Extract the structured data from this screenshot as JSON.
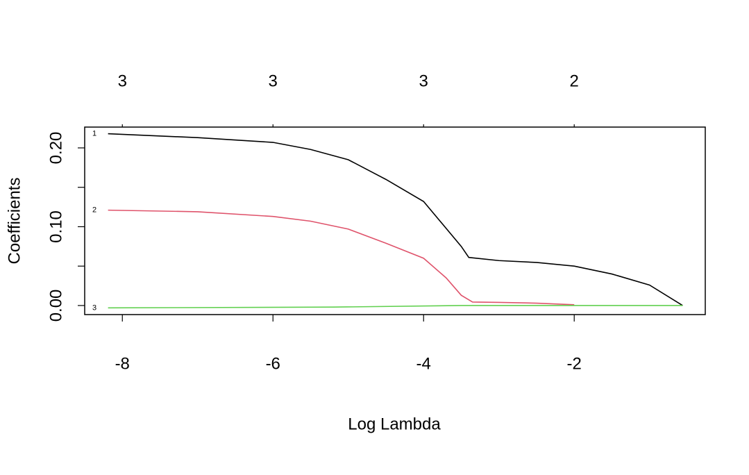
{
  "chart_data": {
    "type": "line",
    "xlabel": "Log Lambda",
    "ylabel": "Coefficients",
    "xlim": [
      -8.5,
      -0.26
    ],
    "ylim": [
      -0.0115,
      0.2264
    ],
    "xticks": [
      -8,
      -6,
      -4,
      -2
    ],
    "top_labels": [
      3,
      3,
      3,
      2
    ],
    "yticks": [
      {
        "value": 0,
        "label": "0.00"
      },
      {
        "value": 0.05,
        "label": null
      },
      {
        "value": 0.1,
        "label": "0.10"
      },
      {
        "value": 0.15,
        "label": null
      },
      {
        "value": 0.2,
        "label": "0.20"
      }
    ],
    "series": [
      {
        "name": "1",
        "color": "#000000",
        "x": [
          -8.19,
          -7,
          -6,
          -5.5,
          -5,
          -4.5,
          -4,
          -3.5,
          -3.4,
          -3,
          -2.5,
          -2,
          -1.5,
          -1,
          -0.56
        ],
        "values": [
          0.218,
          0.213,
          0.207,
          0.198,
          0.185,
          0.16,
          0.132,
          0.075,
          0.061,
          0.057,
          0.0546,
          0.05,
          0.04,
          0.026,
          0
        ]
      },
      {
        "name": "2",
        "color": "#df536b",
        "x": [
          -8.19,
          -7,
          -6,
          -5.5,
          -5,
          -4.5,
          -4,
          -3.7,
          -3.5,
          -3.35,
          -3,
          -2.5,
          -2
        ],
        "values": [
          0.121,
          0.119,
          0.113,
          0.107,
          0.097,
          0.079,
          0.06,
          0.035,
          0.013,
          0.0044,
          0.004,
          0.003,
          0.001
        ]
      },
      {
        "name": "3",
        "color": "#61d04f",
        "x": [
          -8.19,
          -5.2,
          -3.5,
          -0.56
        ],
        "values": [
          -0.003,
          -0.002,
          0,
          0
        ]
      }
    ]
  }
}
